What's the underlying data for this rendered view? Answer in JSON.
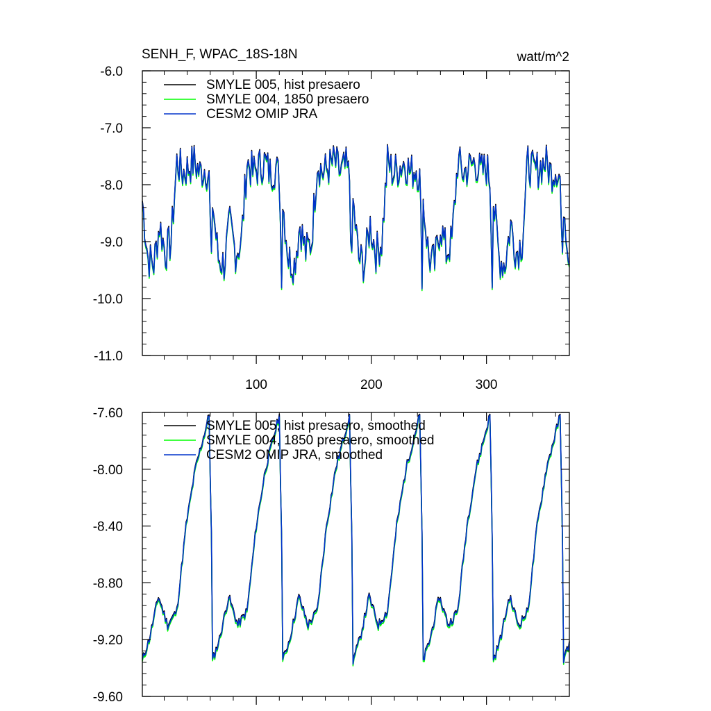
{
  "chart_data": [
    {
      "type": "line",
      "title": "SENH_F, WPAC_18S-18N",
      "units": "watt/m^2",
      "xlim": [
        1,
        372
      ],
      "ylim": [
        -11.0,
        -6.0
      ],
      "x_ticks": [
        100,
        200,
        300
      ],
      "y_ticks": [
        "-11.0",
        "-10.0",
        "-9.0",
        "-8.0",
        "-7.0",
        "-6.0"
      ],
      "legend_position": "top-left",
      "grid": false,
      "series": [
        {
          "name": "SMYLE 005, hist presaero",
          "color": "#000000"
        },
        {
          "name": "SMYLE 004, 1850 presaero",
          "color": "#00ff00"
        },
        {
          "name": "CESM2 OMIP JRA",
          "color": "#0033cc"
        }
      ],
      "cycle_length_months": 61,
      "cycle_profile": [
        [
          0,
          -8.3
        ],
        [
          5,
          -9.3
        ],
        [
          10,
          -9.4
        ],
        [
          15,
          -8.7
        ],
        [
          20,
          -9.2
        ],
        [
          25,
          -9.0
        ],
        [
          30,
          -7.6
        ],
        [
          35,
          -7.8
        ],
        [
          40,
          -7.7
        ],
        [
          45,
          -7.6
        ],
        [
          50,
          -7.8
        ],
        [
          55,
          -7.7
        ],
        [
          58,
          -7.9
        ],
        [
          60,
          -9.5
        ],
        [
          61,
          -8.3
        ]
      ]
    },
    {
      "type": "line",
      "xlim": [
        1,
        372
      ],
      "ylim": [
        -9.6,
        -7.6
      ],
      "x_ticks": [
        100,
        200,
        300
      ],
      "y_ticks": [
        "-9.60",
        "-9.20",
        "-8.80",
        "-8.40",
        "-8.00",
        "-7.60"
      ],
      "legend_position": "top-left",
      "grid": false,
      "series": [
        {
          "name": "SMYLE 005, hist presaero, smoothed",
          "color": "#000000"
        },
        {
          "name": "SMYLE 004, 1850 presaero, smoothed",
          "color": "#00ff00"
        },
        {
          "name": "CESM2 OMIP JRA, smoothed",
          "color": "#0033cc"
        }
      ],
      "cycle_length_months": 61,
      "cycle_profile": [
        [
          0,
          -9.35
        ],
        [
          6,
          -9.2
        ],
        [
          14,
          -8.9
        ],
        [
          22,
          -9.1
        ],
        [
          30,
          -9.0
        ],
        [
          38,
          -8.4
        ],
        [
          46,
          -8.0
        ],
        [
          54,
          -7.75
        ],
        [
          58,
          -7.62
        ],
        [
          61,
          -8.9
        ]
      ]
    }
  ]
}
